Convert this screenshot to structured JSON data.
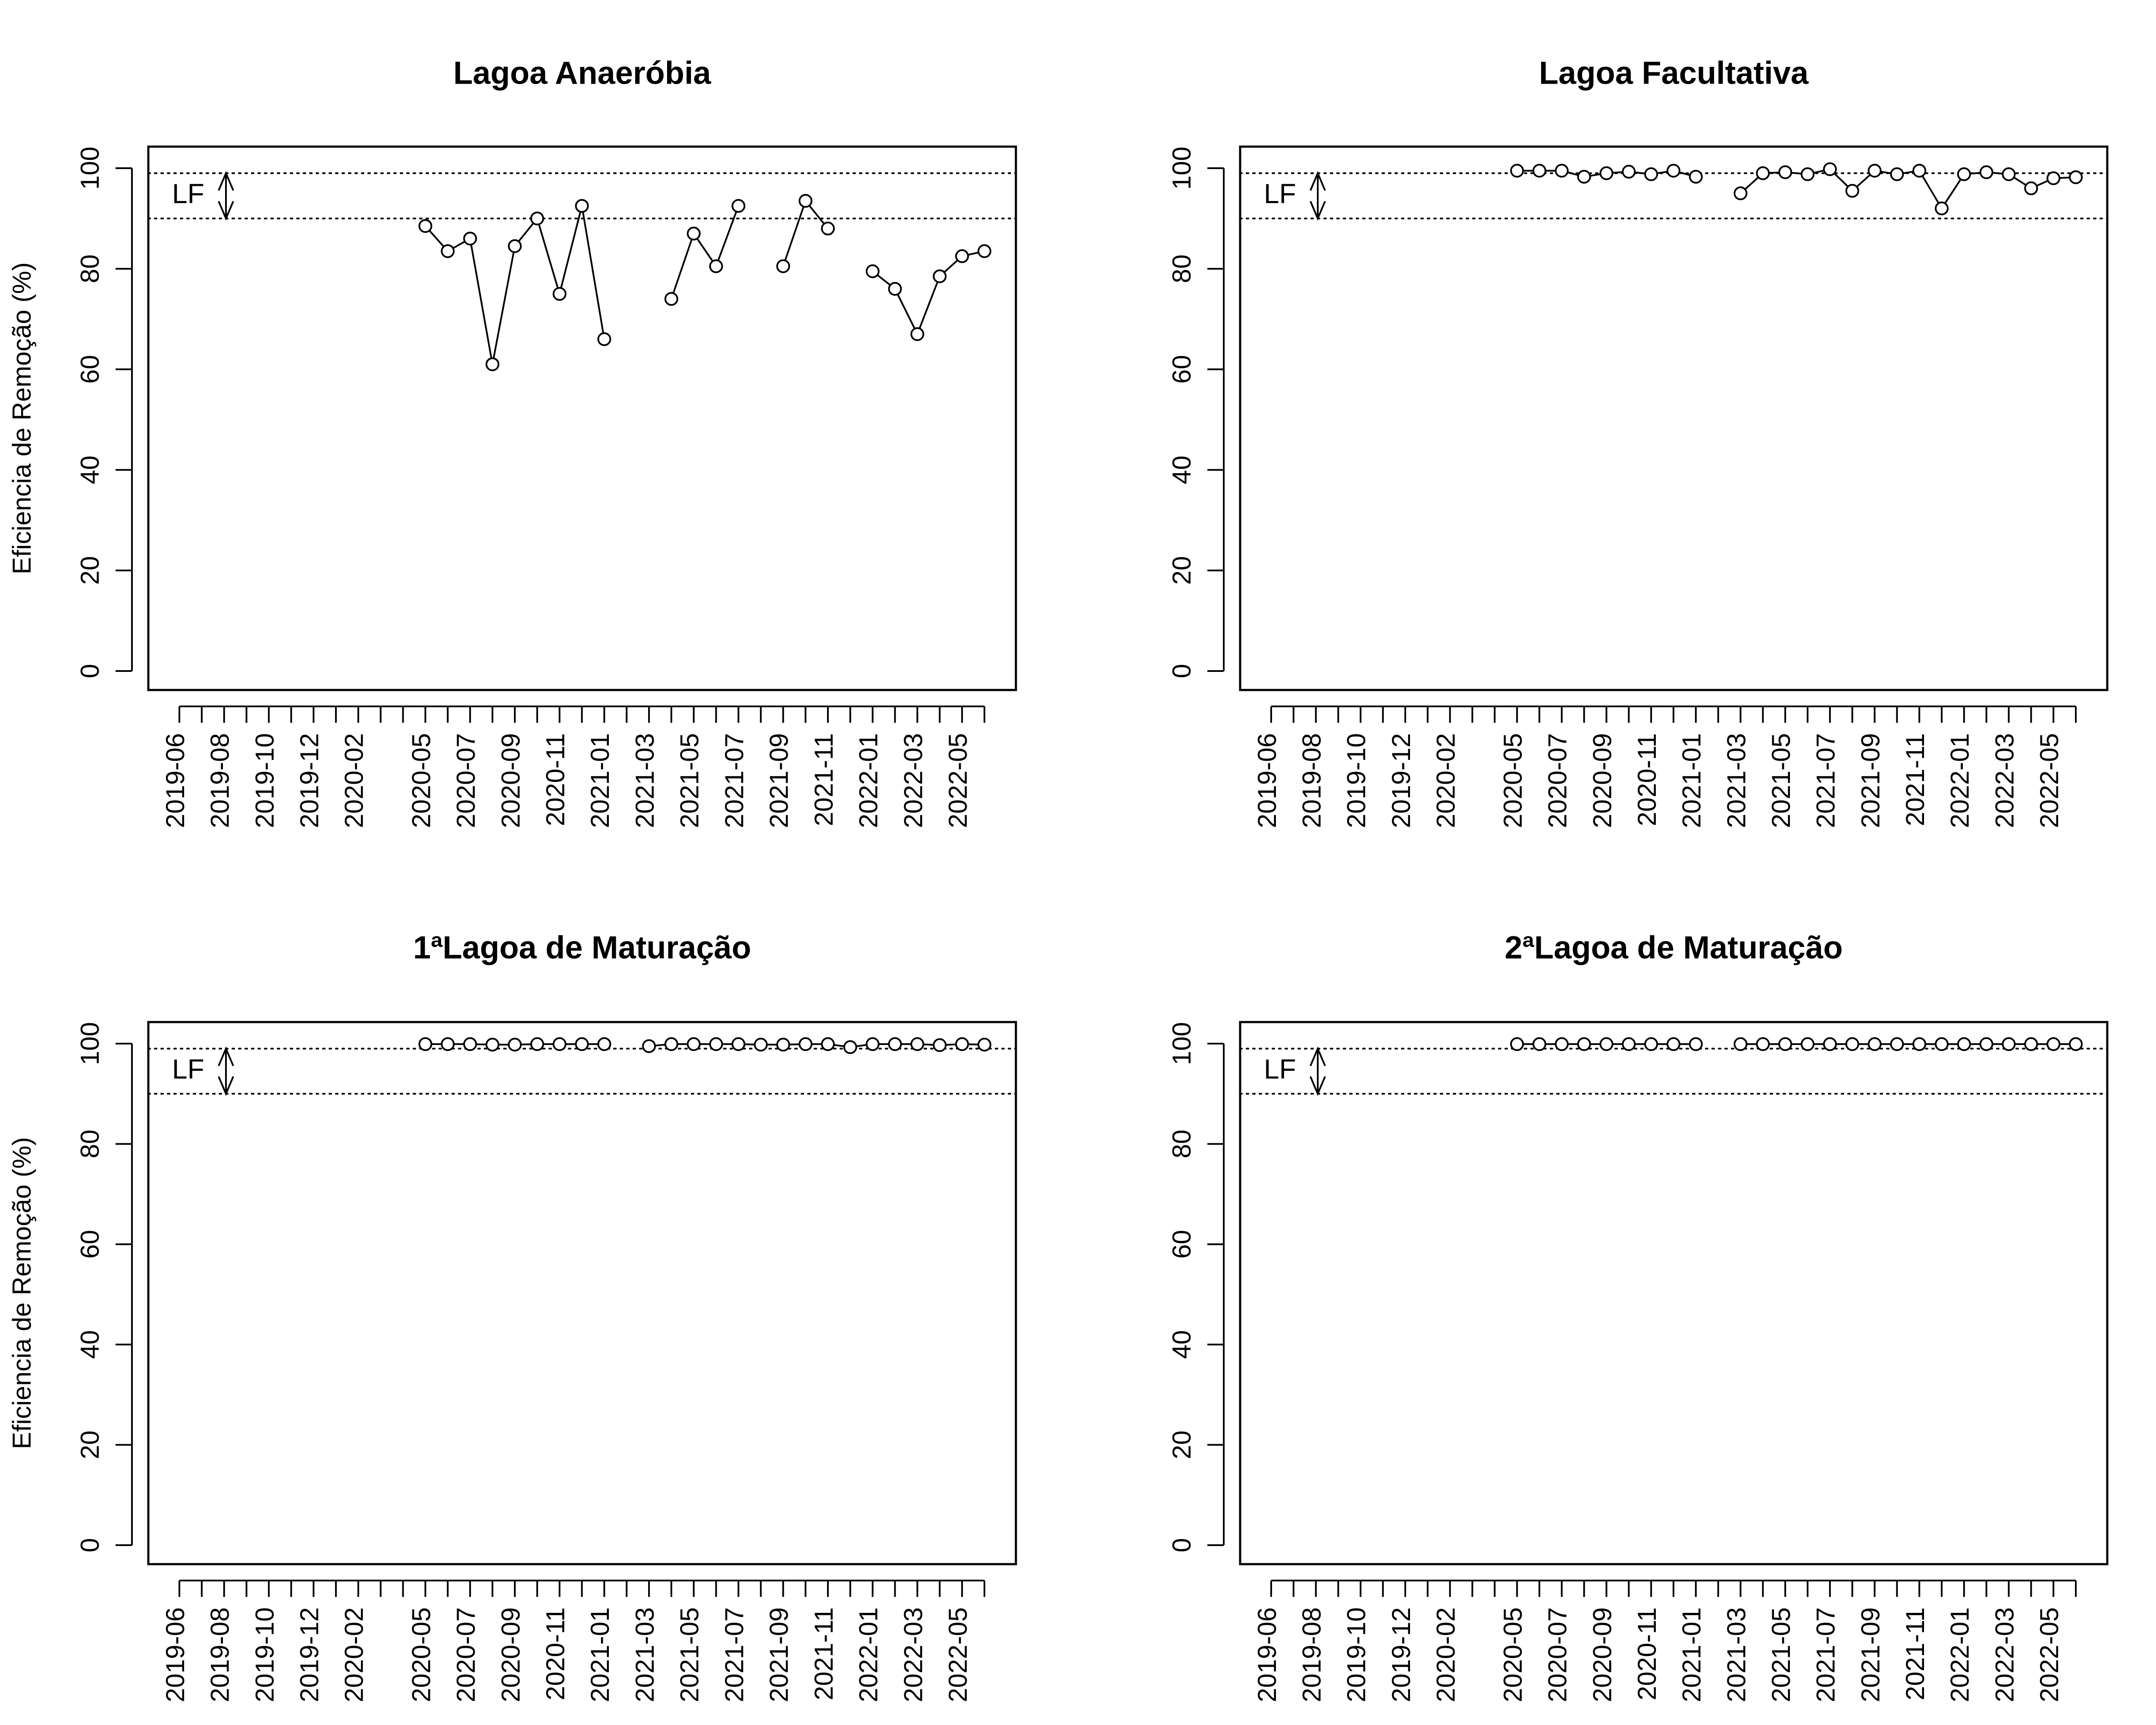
{
  "chart_data": [
    {
      "type": "line",
      "title": "Lagoa Anaeróbia",
      "ylabel": "Eficiencia de Remoção (%)",
      "ylim": [
        0,
        100
      ],
      "yticks": [
        0,
        20,
        40,
        60,
        80,
        100
      ],
      "x": [
        "2019-06",
        "2019-07",
        "2019-08",
        "2019-09",
        "2019-10",
        "2019-11",
        "2019-12",
        "2020-01",
        "2020-02",
        "2020-03",
        "2020-04",
        "2020-05",
        "2020-06",
        "2020-07",
        "2020-08",
        "2020-09",
        "2020-10",
        "2020-11",
        "2020-12",
        "2021-01",
        "2021-02",
        "2021-03",
        "2021-04",
        "2021-05",
        "2021-06",
        "2021-07",
        "2021-08",
        "2021-09",
        "2021-10",
        "2021-11",
        "2021-12",
        "2022-01",
        "2022-02",
        "2022-03",
        "2022-04",
        "2022-05",
        "2022-06"
      ],
      "xtick_labels": [
        "2019-06",
        "2019-08",
        "2019-10",
        "2019-12",
        "2020-02",
        "2020-05",
        "2020-07",
        "2020-09",
        "2020-11",
        "2021-01",
        "2021-03",
        "2021-05",
        "2021-07",
        "2021-09",
        "2021-11",
        "2022-01",
        "2022-03",
        "2022-05"
      ],
      "values": [
        null,
        null,
        null,
        null,
        null,
        null,
        null,
        null,
        null,
        null,
        null,
        88.5,
        83.5,
        86,
        61,
        84.5,
        90,
        75,
        92.5,
        66,
        null,
        null,
        74,
        87,
        80.5,
        92.5,
        null,
        80.5,
        93.5,
        88,
        null,
        79.5,
        76,
        67,
        78.5,
        82.5,
        83.5
      ],
      "reference_lines": [
        99,
        90
      ],
      "annotation": "LF"
    },
    {
      "type": "line",
      "title": "Lagoa Facultativa",
      "ylabel": "",
      "ylim": [
        0,
        100
      ],
      "yticks": [
        0,
        20,
        40,
        60,
        80,
        100
      ],
      "x": [
        "2019-06",
        "2019-07",
        "2019-08",
        "2019-09",
        "2019-10",
        "2019-11",
        "2019-12",
        "2020-01",
        "2020-02",
        "2020-03",
        "2020-04",
        "2020-05",
        "2020-06",
        "2020-07",
        "2020-08",
        "2020-09",
        "2020-10",
        "2020-11",
        "2020-12",
        "2021-01",
        "2021-02",
        "2021-03",
        "2021-04",
        "2021-05",
        "2021-06",
        "2021-07",
        "2021-08",
        "2021-09",
        "2021-10",
        "2021-11",
        "2021-12",
        "2022-01",
        "2022-02",
        "2022-03",
        "2022-04",
        "2022-05",
        "2022-06"
      ],
      "xtick_labels": [
        "2019-06",
        "2019-08",
        "2019-10",
        "2019-12",
        "2020-02",
        "2020-05",
        "2020-07",
        "2020-09",
        "2020-11",
        "2021-01",
        "2021-03",
        "2021-05",
        "2021-07",
        "2021-09",
        "2021-11",
        "2022-01",
        "2022-03",
        "2022-05"
      ],
      "values": [
        null,
        null,
        null,
        null,
        null,
        null,
        null,
        null,
        null,
        null,
        null,
        99.5,
        99.5,
        99.5,
        98.3,
        99,
        99.3,
        98.8,
        99.5,
        98.3,
        null,
        95,
        99,
        99.2,
        98.8,
        99.8,
        95.5,
        99.5,
        98.8,
        99.5,
        92,
        98.8,
        99.2,
        98.8,
        96,
        98,
        98.2
      ],
      "reference_lines": [
        99,
        90
      ],
      "annotation": "LF"
    },
    {
      "type": "line",
      "title": "1ªLagoa de Maturação",
      "ylabel": "Eficiencia de Remoção (%)",
      "ylim": [
        0,
        100
      ],
      "yticks": [
        0,
        20,
        40,
        60,
        80,
        100
      ],
      "x": [
        "2019-06",
        "2019-07",
        "2019-08",
        "2019-09",
        "2019-10",
        "2019-11",
        "2019-12",
        "2020-01",
        "2020-02",
        "2020-03",
        "2020-04",
        "2020-05",
        "2020-06",
        "2020-07",
        "2020-08",
        "2020-09",
        "2020-10",
        "2020-11",
        "2020-12",
        "2021-01",
        "2021-02",
        "2021-03",
        "2021-04",
        "2021-05",
        "2021-06",
        "2021-07",
        "2021-08",
        "2021-09",
        "2021-10",
        "2021-11",
        "2021-12",
        "2022-01",
        "2022-02",
        "2022-03",
        "2022-04",
        "2022-05",
        "2022-06"
      ],
      "xtick_labels": [
        "2019-06",
        "2019-08",
        "2019-10",
        "2019-12",
        "2020-02",
        "2020-05",
        "2020-07",
        "2020-09",
        "2020-11",
        "2021-01",
        "2021-03",
        "2021-05",
        "2021-07",
        "2021-09",
        "2021-11",
        "2022-01",
        "2022-03",
        "2022-05"
      ],
      "values": [
        null,
        null,
        null,
        null,
        null,
        null,
        null,
        null,
        null,
        null,
        null,
        99.9,
        99.9,
        99.9,
        99.8,
        99.8,
        99.9,
        99.9,
        99.9,
        99.9,
        null,
        99.5,
        99.9,
        99.9,
        99.9,
        99.9,
        99.8,
        99.8,
        99.9,
        99.9,
        99.3,
        99.9,
        99.9,
        99.9,
        99.7,
        99.9,
        99.8
      ],
      "reference_lines": [
        99,
        90
      ],
      "annotation": "LF"
    },
    {
      "type": "line",
      "title": "2ªLagoa de Maturação",
      "ylabel": "",
      "ylim": [
        0,
        100
      ],
      "yticks": [
        0,
        20,
        40,
        60,
        80,
        100
      ],
      "x": [
        "2019-06",
        "2019-07",
        "2019-08",
        "2019-09",
        "2019-10",
        "2019-11",
        "2019-12",
        "2020-01",
        "2020-02",
        "2020-03",
        "2020-04",
        "2020-05",
        "2020-06",
        "2020-07",
        "2020-08",
        "2020-09",
        "2020-10",
        "2020-11",
        "2020-12",
        "2021-01",
        "2021-02",
        "2021-03",
        "2021-04",
        "2021-05",
        "2021-06",
        "2021-07",
        "2021-08",
        "2021-09",
        "2021-10",
        "2021-11",
        "2021-12",
        "2022-01",
        "2022-02",
        "2022-03",
        "2022-04",
        "2022-05",
        "2022-06"
      ],
      "xtick_labels": [
        "2019-06",
        "2019-08",
        "2019-10",
        "2019-12",
        "2020-02",
        "2020-05",
        "2020-07",
        "2020-09",
        "2020-11",
        "2021-01",
        "2021-03",
        "2021-05",
        "2021-07",
        "2021-09",
        "2021-11",
        "2022-01",
        "2022-03",
        "2022-05"
      ],
      "values": [
        null,
        null,
        null,
        null,
        null,
        null,
        null,
        null,
        null,
        null,
        null,
        99.9,
        99.9,
        99.9,
        99.9,
        99.9,
        99.9,
        99.9,
        99.9,
        99.9,
        null,
        99.9,
        99.9,
        99.9,
        99.9,
        99.9,
        99.9,
        99.9,
        99.9,
        99.9,
        99.9,
        99.9,
        99.9,
        99.9,
        99.9,
        99.9,
        99.9
      ],
      "reference_lines": [
        99,
        90
      ],
      "annotation": "LF"
    }
  ]
}
